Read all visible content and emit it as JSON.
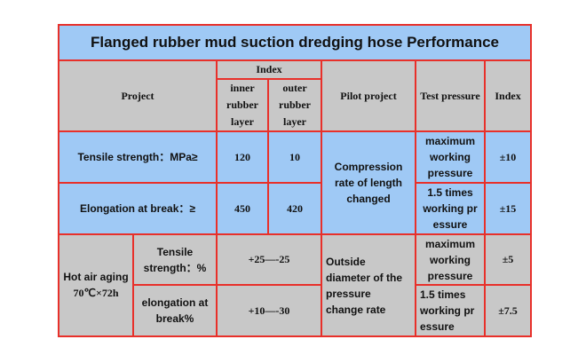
{
  "title": "Flanged rubber mud suction dredging hose Performance",
  "header": {
    "project": "Project",
    "index_group": "Index",
    "inner_layer": "inner rubber layer",
    "outer_layer": "outer rubber layer",
    "pilot_project": "Pilot project",
    "test_pressure": "Test pressure",
    "index": "Index"
  },
  "rows": {
    "tensile": {
      "label": "Tensile strength：MPa≥",
      "inner": "120",
      "outer": "10"
    },
    "elongation": {
      "label": "Elongation at break：≥",
      "inner": "450",
      "outer": "420"
    },
    "compression_pilot": "Compression rate of length changed",
    "compression_p1": "maximum working pressure",
    "compression_i1": "±10",
    "compression_p2": "1.5 times working pr essure",
    "compression_i2": "±15",
    "hot_air_label": "Hot air aging",
    "hot_air_cond": "70℃×72h",
    "hot_tensile_label": "Tensile strength：%",
    "hot_tensile_val": "+25—-25",
    "hot_elong_label": "elongation at break%",
    "hot_elong_val": "+10—-30",
    "outside_pilot": "Outside diameter of the pressure change rate",
    "outside_p1": "maximum working pressure",
    "outside_i1": "±5",
    "outside_p2": "1.5 times working pr essure",
    "outside_i2": "±7.5"
  }
}
